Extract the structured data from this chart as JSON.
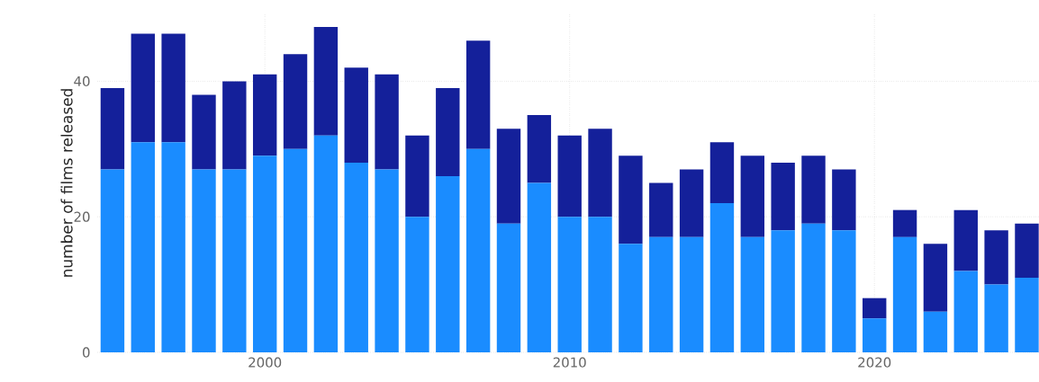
{
  "chart_data": {
    "type": "bar",
    "stacked": true,
    "ylabel": "number of films released",
    "x": [
      1995,
      1996,
      1997,
      1998,
      1999,
      2000,
      2001,
      2002,
      2003,
      2004,
      2005,
      2006,
      2007,
      2008,
      2009,
      2010,
      2011,
      2012,
      2013,
      2014,
      2015,
      2016,
      2017,
      2018,
      2019,
      2020,
      2021,
      2022,
      2023,
      2024,
      2025
    ],
    "series": [
      {
        "color": "#1a8cff",
        "values": [
          27,
          31,
          31,
          27,
          27,
          29,
          30,
          32,
          28,
          27,
          20,
          26,
          30,
          19,
          25,
          20,
          20,
          16,
          17,
          17,
          22,
          17,
          18,
          19,
          18,
          5,
          17,
          6,
          12,
          10,
          11
        ]
      },
      {
        "color": "#14209a",
        "values": [
          12,
          16,
          16,
          11,
          13,
          12,
          14,
          16,
          14,
          14,
          12,
          13,
          16,
          14,
          10,
          12,
          13,
          13,
          8,
          10,
          9,
          12,
          10,
          10,
          9,
          3,
          4,
          10,
          9,
          8,
          8
        ]
      }
    ],
    "xlim": [
      1994.5,
      2025.4
    ],
    "xticks": [
      2000,
      2010,
      2020
    ],
    "ylim": [
      0,
      50
    ],
    "yticks": [
      0,
      20,
      40
    ],
    "grid": true
  }
}
